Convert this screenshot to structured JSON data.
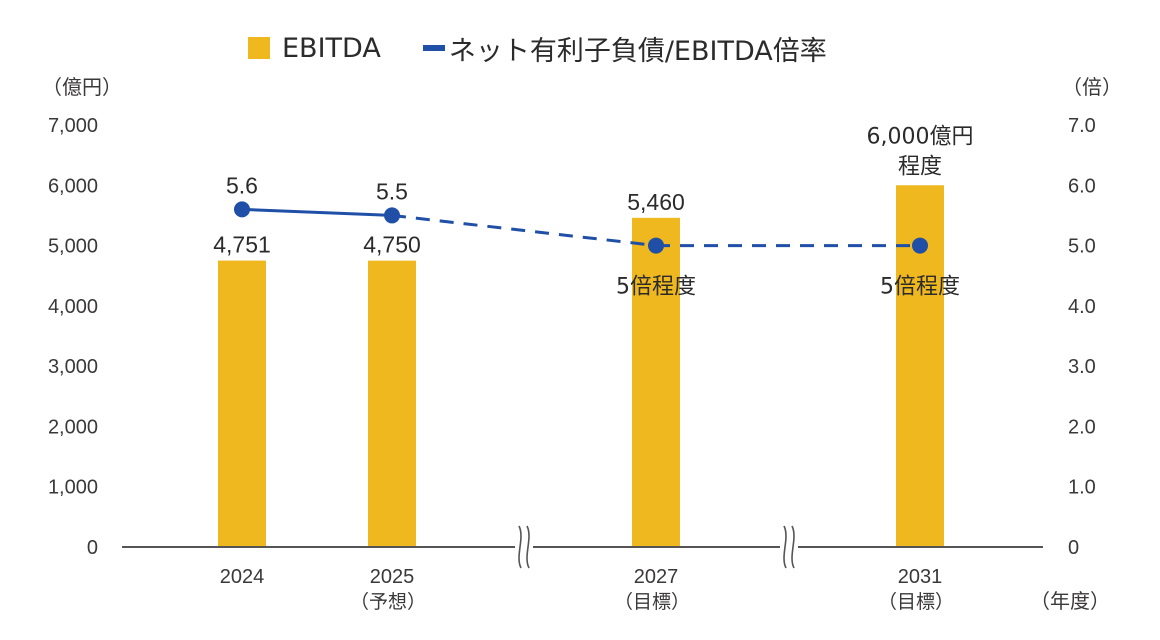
{
  "chart_data": {
    "type": "bar",
    "legend": {
      "bar_label": "EBITDA",
      "line_label": "ネット有利子負債/EBITDA倍率",
      "placement": "top-center"
    },
    "categories": [
      "2024",
      "2025",
      "2027",
      "2031"
    ],
    "category_sublabels": [
      "",
      "（予想）",
      "（目標）",
      "（目標）"
    ],
    "x_unit_label": "（年度）",
    "axis_breaks_after_index": [
      1,
      2
    ],
    "left_axis": {
      "unit_label": "（億円）",
      "ylim": [
        0,
        7000
      ],
      "ticks": [
        0,
        1000,
        2000,
        3000,
        4000,
        5000,
        6000,
        7000
      ],
      "tick_labels": [
        "0",
        "1,000",
        "2,000",
        "3,000",
        "4,000",
        "5,000",
        "6,000",
        "7,000"
      ]
    },
    "right_axis": {
      "unit_label": "（倍）",
      "ylim": [
        0,
        7
      ],
      "ticks": [
        0,
        1,
        2,
        3,
        4,
        5,
        6,
        7
      ],
      "tick_labels": [
        "0",
        "1.0",
        "2.0",
        "3.0",
        "4.0",
        "5.0",
        "6.0",
        "7.0"
      ]
    },
    "series": [
      {
        "name": "EBITDA",
        "type": "bar",
        "axis": "left",
        "values": [
          4751,
          4750,
          5460,
          6000
        ],
        "data_labels": [
          "4,751",
          "4,750",
          "5,460",
          "6,000億円"
        ],
        "data_label_suffix_line": [
          "",
          "",
          "",
          "程度"
        ],
        "color": "#efb81e"
      },
      {
        "name": "ネット有利子負債/EBITDA倍率",
        "type": "line",
        "axis": "right",
        "values": [
          5.6,
          5.5,
          5.0,
          5.0
        ],
        "data_labels": [
          "5.6",
          "5.5",
          "5倍程度",
          "5倍程度"
        ],
        "dashed_from_index": 1,
        "color": "#1f4fa6"
      }
    ],
    "grid": false
  }
}
